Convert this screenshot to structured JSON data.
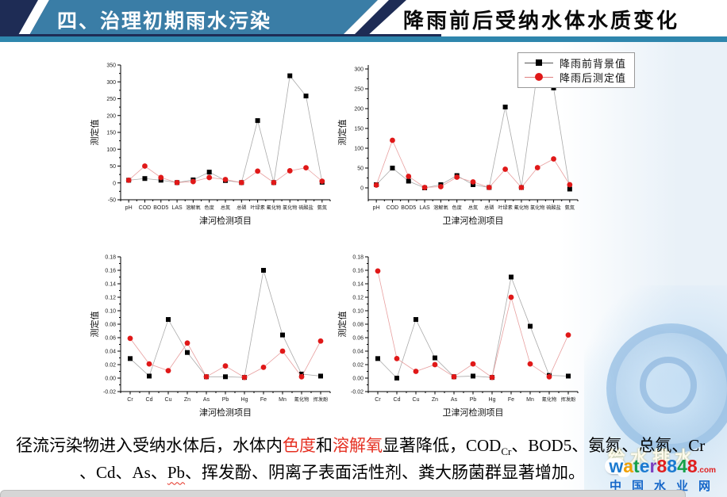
{
  "header": {
    "section_label": "四、治理初期雨水污染",
    "title": "降雨前后受纳水体水质变化",
    "banner_color": "#3a7da6",
    "navy_color": "#1e2c55"
  },
  "legend": {
    "items": [
      {
        "label": "降雨前背景值",
        "marker": "square",
        "color": "#000000"
      },
      {
        "label": "降雨后测定值",
        "marker": "circle",
        "color": "#e01818"
      }
    ]
  },
  "chart_data": [
    {
      "type": "line",
      "title": "",
      "xlabel": "津河检测项目",
      "ylabel": "测定值",
      "categories": [
        "pH",
        "COD",
        "BOD5",
        "LAS",
        "溶解氧",
        "色度",
        "总氮",
        "总磷",
        "叶绿素",
        "氟化物",
        "氯化物",
        "硫酸盐",
        "氨氮"
      ],
      "ylim": [
        -50,
        350
      ],
      "yticks": [
        -50,
        0,
        50,
        100,
        150,
        200,
        250,
        300,
        350
      ],
      "ydecimals": 0,
      "series": [
        {
          "name": "降雨前背景值",
          "marker": "square",
          "color": "#000000",
          "line_color": "#aaaaaa",
          "values": [
            8,
            13,
            8,
            1,
            9,
            32,
            7,
            1,
            185,
            1,
            318,
            258,
            2
          ]
        },
        {
          "name": "降雨后测定值",
          "marker": "circle",
          "color": "#e01818",
          "line_color": "#e8a0a0",
          "values": [
            8,
            50,
            16,
            1,
            4,
            16,
            10,
            1,
            35,
            1,
            36,
            45,
            5
          ]
        }
      ]
    },
    {
      "type": "line",
      "title": "",
      "xlabel": "卫津河检测项目",
      "ylabel": "测定值",
      "categories": [
        "pH",
        "COD",
        "BOD5",
        "LAS",
        "溶解氧",
        "色度",
        "总氮",
        "总磷",
        "叶绿素",
        "氟化物",
        "氯化物",
        "硫酸盐",
        "氨氮"
      ],
      "ylim": [
        -30,
        310
      ],
      "yticks": [
        0,
        50,
        100,
        150,
        200,
        250,
        300
      ],
      "ydecimals": 0,
      "series": [
        {
          "name": "降雨前背景值",
          "marker": "square",
          "color": "#000000",
          "line_color": "#aaaaaa",
          "values": [
            8,
            50,
            17,
            0,
            8,
            31,
            8,
            1,
            204,
            1,
            295,
            252,
            -3
          ]
        },
        {
          "name": "降雨后测定值",
          "marker": "circle",
          "color": "#e01818",
          "line_color": "#e8a0a0",
          "values": [
            7,
            120,
            29,
            1,
            3,
            27,
            15,
            1,
            47,
            1,
            51,
            73,
            8
          ]
        }
      ]
    },
    {
      "type": "line",
      "title": "",
      "xlabel": "津河检测项目",
      "ylabel": "测定值",
      "categories": [
        "Cr",
        "Cd",
        "Cu",
        "Zn",
        "As",
        "Pb",
        "Hg",
        "Fe",
        "Mn",
        "氰化物",
        "挥发酚"
      ],
      "ylim": [
        -0.02,
        0.18
      ],
      "yticks": [
        -0.02,
        0.0,
        0.02,
        0.04,
        0.06,
        0.08,
        0.1,
        0.12,
        0.14,
        0.16,
        0.18
      ],
      "ydecimals": 2,
      "series": [
        {
          "name": "降雨前背景值",
          "marker": "square",
          "color": "#000000",
          "line_color": "#aaaaaa",
          "values": [
            0.029,
            0.003,
            0.087,
            0.038,
            0.002,
            0.002,
            0.001,
            0.16,
            0.064,
            0.006,
            0.003
          ]
        },
        {
          "name": "降雨后测定值",
          "marker": "circle",
          "color": "#e01818",
          "line_color": "#e8a0a0",
          "values": [
            0.059,
            0.021,
            0.011,
            0.052,
            0.002,
            0.018,
            0.001,
            0.016,
            0.04,
            0.002,
            0.055
          ]
        }
      ]
    },
    {
      "type": "line",
      "title": "",
      "xlabel": "卫津河检测项目",
      "ylabel": "测定值",
      "categories": [
        "Cr",
        "Cd",
        "Cu",
        "Zn",
        "As",
        "Pb",
        "Hg",
        "Fe",
        "Mn",
        "氰化物",
        "挥发酚"
      ],
      "ylim": [
        -0.02,
        0.18
      ],
      "yticks": [
        -0.02,
        0.0,
        0.02,
        0.04,
        0.06,
        0.08,
        0.1,
        0.12,
        0.14,
        0.16,
        0.18
      ],
      "ydecimals": 2,
      "series": [
        {
          "name": "降雨前背景值",
          "marker": "square",
          "color": "#000000",
          "line_color": "#aaaaaa",
          "values": [
            0.029,
            0.0,
            0.087,
            0.03,
            0.002,
            0.003,
            0.001,
            0.15,
            0.077,
            0.004,
            0.003
          ]
        },
        {
          "name": "降雨后测定值",
          "marker": "circle",
          "color": "#e01818",
          "line_color": "#e8a0a0",
          "values": [
            0.159,
            0.029,
            0.01,
            0.02,
            0.002,
            0.021,
            0.001,
            0.12,
            0.021,
            0.002,
            0.064
          ]
        }
      ]
    }
  ],
  "footer": {
    "lines": [
      [
        {
          "text": "径流污染物进入受纳水体后，水体内",
          "style": "normal"
        },
        {
          "text": "色度",
          "style": "red"
        },
        {
          "text": "和",
          "style": "normal"
        },
        {
          "text": "溶解氧",
          "style": "red"
        },
        {
          "text": "显著降低，COD",
          "style": "normal"
        },
        {
          "text": "Cr",
          "style": "sub"
        },
        {
          "text": "、BOD5、氨氮、总氮、Cr",
          "style": "normal"
        }
      ],
      [
        {
          "text": "、Cd、As、",
          "style": "normal"
        },
        {
          "text": "Pb",
          "style": "wavy"
        },
        {
          "text": "、挥发酚、阴离子表面活性剂、粪大肠菌群显著增加。",
          "style": "normal"
        }
      ]
    ]
  },
  "watermark": {
    "outline_text": "给水排水",
    "logo_letters": [
      {
        "ch": "w",
        "color": "#1b7ad0"
      },
      {
        "ch": "a",
        "color": "#f0a000"
      },
      {
        "ch": "t",
        "color": "#16a04a"
      },
      {
        "ch": "e",
        "color": "#1b7ad0"
      },
      {
        "ch": "r",
        "color": "#7a3fc0"
      },
      {
        "ch": "8",
        "color": "#e02020"
      },
      {
        "ch": "8",
        "color": "#1b7ad0"
      },
      {
        "ch": "4",
        "color": "#16a04a"
      },
      {
        "ch": "8",
        "color": "#e02020"
      }
    ],
    "logo_suffix": ".com",
    "site_name": "中国水业网"
  }
}
